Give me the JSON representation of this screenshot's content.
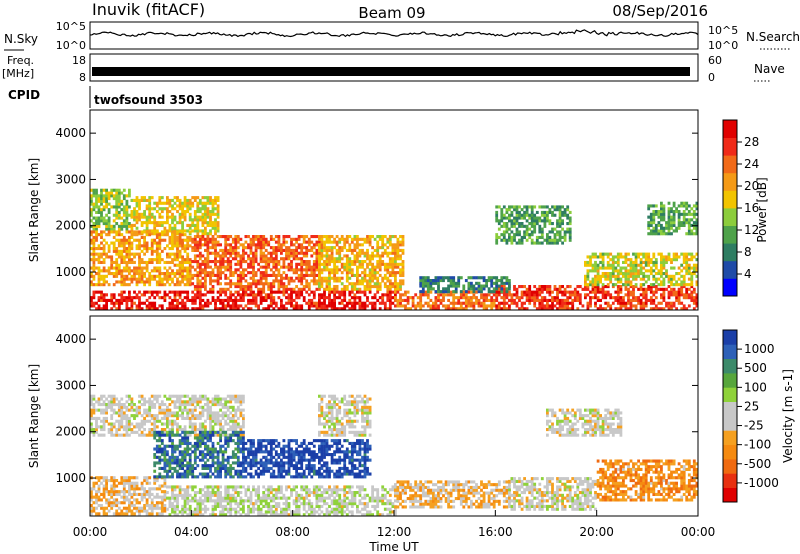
{
  "header": {
    "station": "Inuvik (fitACF)",
    "beam": "Beam 09",
    "date": "08/Sep/2016"
  },
  "noise_panel": {
    "left_label": "N.Sky",
    "right_label": "N.Search",
    "left_ticks": [
      "10^5",
      "10^0"
    ],
    "right_ticks": [
      "10^5",
      "10^0"
    ]
  },
  "freq_panel": {
    "left_label": "Freq.",
    "left_unit": "[MHz]",
    "left_ticks": [
      "18",
      "8"
    ],
    "right_label": "Nave",
    "right_ticks": [
      "60",
      "0"
    ]
  },
  "cpid_panel": {
    "label": "CPID",
    "value": "twofsound 3503"
  },
  "power_colorbar": {
    "label": "Power [dB]",
    "ticks": [
      "28",
      "24",
      "20",
      "16",
      "12",
      "8",
      "4"
    ],
    "colors": [
      "#0000ff",
      "#1f4ba8",
      "#2e7d62",
      "#4ea24a",
      "#8ccd3c",
      "#f2c400",
      "#f59a16",
      "#f26a18",
      "#f02a18",
      "#e00000"
    ]
  },
  "velocity_colorbar": {
    "label": "Velocity [m s-1]",
    "ticks": [
      "1000",
      "500",
      "100",
      "25",
      "-25",
      "-100",
      "-500",
      "-1000"
    ],
    "colors": [
      "#1b3fa8",
      "#2e61b8",
      "#3c8a6a",
      "#57a63c",
      "#8fd23a",
      "#c8c8c8",
      "#c8c8c8",
      "#f5a020",
      "#f58a10",
      "#f06a10",
      "#e83010",
      "#e00000"
    ]
  },
  "chart_data": {
    "type": "heatmap",
    "xlabel": "Time UT",
    "ylabel": "Slant Range [km]",
    "x_ticks": [
      "00:00",
      "04:00",
      "08:00",
      "12:00",
      "16:00",
      "20:00",
      "00:00"
    ],
    "y_ticks": [
      "1000",
      "2000",
      "3000",
      "4000"
    ],
    "xlim_hours": [
      0,
      24
    ],
    "ylim_km": [
      180,
      4500
    ],
    "panels": [
      {
        "quantity": "Power",
        "unit": "dB",
        "clim": [
          0,
          30
        ],
        "regions": [
          {
            "t0": 0.0,
            "t1": 1.6,
            "r0": 1900,
            "r1": 2750,
            "value": 13
          },
          {
            "t0": 1.6,
            "t1": 5.0,
            "r0": 1800,
            "r1": 2600,
            "value": 16
          },
          {
            "t0": 0.0,
            "t1": 4.0,
            "r0": 700,
            "r1": 1900,
            "value": 19
          },
          {
            "t0": 4.0,
            "t1": 9.0,
            "r0": 600,
            "r1": 1800,
            "value": 23
          },
          {
            "t0": 9.0,
            "t1": 12.3,
            "r0": 600,
            "r1": 1800,
            "value": 18
          },
          {
            "t0": 0.0,
            "t1": 12.0,
            "r0": 180,
            "r1": 600,
            "value": 27
          },
          {
            "t0": 12.0,
            "t1": 16.0,
            "r0": 180,
            "r1": 550,
            "value": 22
          },
          {
            "t0": 16.0,
            "t1": 24.0,
            "r0": 180,
            "r1": 700,
            "value": 25
          },
          {
            "t0": 13.0,
            "t1": 16.5,
            "r0": 550,
            "r1": 900,
            "value": 8
          },
          {
            "t0": 16.0,
            "t1": 19.0,
            "r0": 1600,
            "r1": 2400,
            "value": 10
          },
          {
            "t0": 19.5,
            "t1": 24.0,
            "r0": 700,
            "r1": 1400,
            "value": 15
          },
          {
            "t0": 22.0,
            "t1": 24.0,
            "r0": 1800,
            "r1": 2500,
            "value": 11
          }
        ]
      },
      {
        "quantity": "Velocity",
        "unit": "m s-1",
        "clim": [
          -1000,
          1000
        ],
        "regions": [
          {
            "t0": 0.0,
            "t1": 6.0,
            "r0": 1900,
            "r1": 2800,
            "value": 0
          },
          {
            "t0": 0.0,
            "t1": 3.0,
            "r0": 200,
            "r1": 1000,
            "value": -200
          },
          {
            "t0": 2.5,
            "t1": 6.0,
            "r0": 1000,
            "r1": 2000,
            "value": 700
          },
          {
            "t0": 6.0,
            "t1": 11.0,
            "r0": 1000,
            "r1": 1800,
            "value": 900
          },
          {
            "t0": 3.0,
            "t1": 12.0,
            "r0": 180,
            "r1": 800,
            "value": 60
          },
          {
            "t0": 12.0,
            "t1": 16.5,
            "r0": 350,
            "r1": 900,
            "value": -200
          },
          {
            "t0": 16.5,
            "t1": 20.0,
            "r0": 300,
            "r1": 1000,
            "value": 0
          },
          {
            "t0": 20.0,
            "t1": 24.0,
            "r0": 500,
            "r1": 1400,
            "value": -400
          },
          {
            "t0": 18.0,
            "t1": 21.0,
            "r0": 1900,
            "r1": 2500,
            "value": 0
          },
          {
            "t0": 9.0,
            "t1": 11.0,
            "r0": 1900,
            "r1": 2800,
            "value": 0
          }
        ]
      }
    ]
  }
}
